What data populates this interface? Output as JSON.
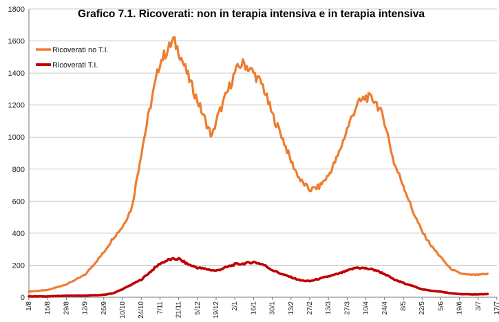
{
  "chart_data": {
    "type": "line",
    "title": "Grafico 7.1. Ricoverati: non in terapia intensiva e in terapia intensiva",
    "xlabel": "",
    "ylabel": "",
    "ylim": [
      0,
      1800
    ],
    "yticks": [
      0,
      200,
      400,
      600,
      800,
      1000,
      1200,
      1400,
      1600,
      1800
    ],
    "grid": "horizontal",
    "legend_position": "top-left",
    "x_tick_labels": [
      "1/8",
      "15/8",
      "29/8",
      "12/9",
      "26/9",
      "10/10",
      "24/10",
      "7/11",
      "21/11",
      "5/12",
      "19/12",
      "2/1",
      "16/1",
      "30/1",
      "13/2",
      "27/2",
      "13/3",
      "27/3",
      "10/4",
      "24/4",
      "8/5",
      "22/5",
      "5/6",
      "19/6",
      "3/7",
      "17/7"
    ],
    "series": [
      {
        "name": "Ricoverati no T.I.",
        "color": "#ED7D31",
        "points": [
          [
            0,
            35
          ],
          [
            14,
            45
          ],
          [
            28,
            80
          ],
          [
            42,
            140
          ],
          [
            56,
            280
          ],
          [
            63,
            370
          ],
          [
            70,
            440
          ],
          [
            77,
            560
          ],
          [
            84,
            900
          ],
          [
            91,
            1200
          ],
          [
            98,
            1470
          ],
          [
            105,
            1560
          ],
          [
            108,
            1605
          ],
          [
            112,
            1540
          ],
          [
            119,
            1380
          ],
          [
            126,
            1230
          ],
          [
            133,
            1080
          ],
          [
            137,
            1000
          ],
          [
            140,
            1100
          ],
          [
            147,
            1250
          ],
          [
            154,
            1400
          ],
          [
            158,
            1450
          ],
          [
            161,
            1460
          ],
          [
            168,
            1400
          ],
          [
            175,
            1320
          ],
          [
            182,
            1140
          ],
          [
            189,
            1010
          ],
          [
            196,
            850
          ],
          [
            203,
            730
          ],
          [
            210,
            670
          ],
          [
            217,
            690
          ],
          [
            224,
            760
          ],
          [
            231,
            880
          ],
          [
            238,
            1050
          ],
          [
            245,
            1200
          ],
          [
            252,
            1250
          ],
          [
            259,
            1230
          ],
          [
            266,
            1100
          ],
          [
            273,
            840
          ],
          [
            280,
            700
          ],
          [
            287,
            540
          ],
          [
            294,
            410
          ],
          [
            301,
            320
          ],
          [
            308,
            250
          ],
          [
            315,
            180
          ],
          [
            322,
            150
          ],
          [
            329,
            140
          ],
          [
            336,
            140
          ],
          [
            343,
            145
          ]
        ]
      },
      {
        "name": "Ricoverati T.I.",
        "color": "#C00000",
        "points": [
          [
            0,
            5
          ],
          [
            14,
            5
          ],
          [
            28,
            10
          ],
          [
            42,
            10
          ],
          [
            56,
            15
          ],
          [
            63,
            25
          ],
          [
            70,
            50
          ],
          [
            77,
            80
          ],
          [
            84,
            110
          ],
          [
            91,
            160
          ],
          [
            98,
            210
          ],
          [
            105,
            235
          ],
          [
            112,
            240
          ],
          [
            119,
            205
          ],
          [
            126,
            185
          ],
          [
            133,
            175
          ],
          [
            140,
            165
          ],
          [
            147,
            185
          ],
          [
            154,
            205
          ],
          [
            161,
            210
          ],
          [
            168,
            220
          ],
          [
            175,
            205
          ],
          [
            182,
            170
          ],
          [
            189,
            145
          ],
          [
            196,
            125
          ],
          [
            203,
            105
          ],
          [
            210,
            100
          ],
          [
            217,
            115
          ],
          [
            224,
            130
          ],
          [
            231,
            145
          ],
          [
            238,
            165
          ],
          [
            245,
            185
          ],
          [
            252,
            180
          ],
          [
            259,
            170
          ],
          [
            266,
            145
          ],
          [
            273,
            110
          ],
          [
            280,
            90
          ],
          [
            287,
            70
          ],
          [
            294,
            50
          ],
          [
            301,
            40
          ],
          [
            308,
            35
          ],
          [
            315,
            25
          ],
          [
            322,
            20
          ],
          [
            329,
            18
          ],
          [
            336,
            18
          ],
          [
            343,
            20
          ]
        ]
      }
    ]
  }
}
